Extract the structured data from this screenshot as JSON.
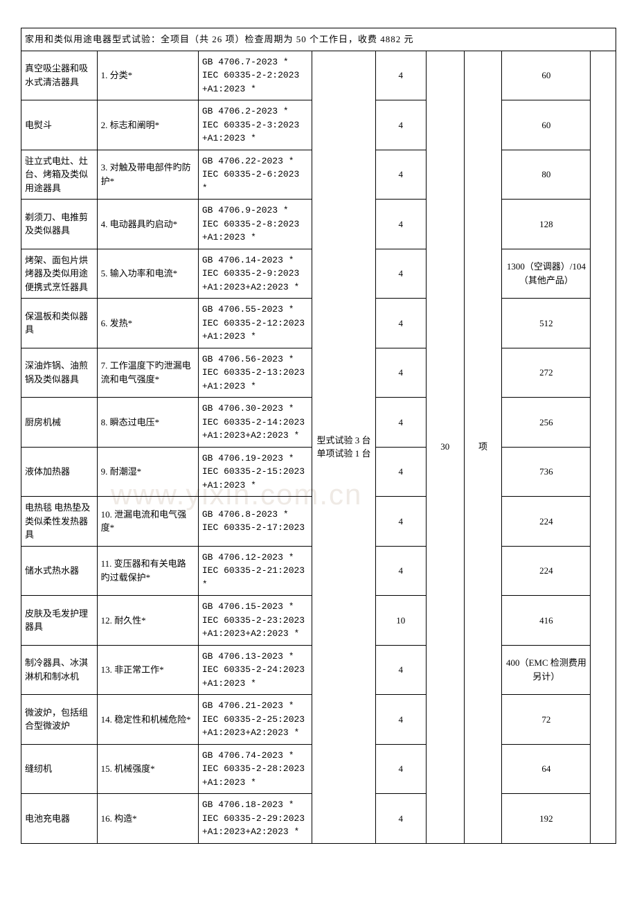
{
  "watermark_text": "www.yixin.com.cn",
  "header_text": "家用和类似用途电器型式试验：全项目（共 26 项）检查周期为 50 个工作日，收费 4882 元",
  "merged_sample": "型式试验 3 台\n单项试验 1 台",
  "merged_days2": "30",
  "merged_unit": "项",
  "colors": {
    "background": "#ffffff",
    "border": "#000000",
    "text": "#000000",
    "watermark": "#efeae5"
  },
  "rows": [
    {
      "name": "真空吸尘器和吸水式清洁器具",
      "item": "1. 分类*",
      "std": "GB 4706.7-2023 *\nIEC 60335-2-2:2023 +A1:2023 *",
      "days": "4",
      "fee": "60"
    },
    {
      "name": "电熨斗",
      "item": "2. 标志和阐明*",
      "std": "GB 4706.2-2023 *\nIEC 60335-2-3:2023 +A1:2023 *",
      "days": "4",
      "fee": "60"
    },
    {
      "name": "驻立式电灶、灶台、烤箱及类似用途器具",
      "item": "3. 对触及带电部件旳防护*",
      "std": "GB 4706.22-2023 *\nIEC 60335-2-6:2023 *",
      "days": "4",
      "fee": "80"
    },
    {
      "name": "剃须刀、电推剪及类似器具",
      "item": "4. 电动器具旳启动*",
      "std": "GB 4706.9-2023 *\nIEC 60335-2-8:2023 +A1:2023 *",
      "days": "4",
      "fee": "128"
    },
    {
      "name": "烤架、面包片烘烤器及类似用途便携式烹饪器具",
      "item": "5. 输入功率和电流*",
      "std": "GB 4706.14-2023 *\nIEC 60335-2-9:2023 +A1:2023+A2:2023 *",
      "days": "4",
      "fee": "1300（空调器）/104（其他产品）"
    },
    {
      "name": "保温板和类似器具",
      "item": "6. 发热*",
      "std": "GB 4706.55-2023 *\nIEC 60335-2-12:2023 +A1:2023 *",
      "days": "4",
      "fee": "512"
    },
    {
      "name": "深油炸锅、油煎锅及类似器具",
      "item": "7. 工作温度下旳泄漏电流和电气强度*",
      "std": "GB 4706.56-2023 *\nIEC 60335-2-13:2023 +A1:2023 *",
      "days": "4",
      "fee": "272"
    },
    {
      "name": "厨房机械",
      "item": "8. 瞬态过电压*",
      "std": "GB 4706.30-2023 *\nIEC 60335-2-14:2023 +A1:2023+A2:2023 *",
      "days": "4",
      "fee": "256"
    },
    {
      "name": "液体加热器",
      "item": "9. 耐潮湿*",
      "std": "GB 4706.19-2023 *\nIEC 60335-2-15:2023 +A1:2023 *",
      "days": "4",
      "fee": "736"
    },
    {
      "name": "电热毯 电热垫及类似柔性发热器具",
      "item": "10. 泄漏电流和电气强度*",
      "std": "GB 4706.8-2023 *\nIEC 60335-2-17:2023",
      "days": "4",
      "fee": "224"
    },
    {
      "name": "储水式热水器",
      "item": "11. 变压器和有关电路旳过载保护*",
      "std": "GB 4706.12-2023 *\nIEC 60335-2-21:2023 *",
      "days": "4",
      "fee": "224"
    },
    {
      "name": "皮肤及毛发护理器具",
      "item": "12. 耐久性*",
      "std": "GB 4706.15-2023 *\nIEC 60335-2-23:2023 +A1:2023+A2:2023 *",
      "days": "10",
      "fee": "416"
    },
    {
      "name": "制冷器具、冰淇淋机和制冰机",
      "item": "13. 非正常工作*",
      "std": "GB 4706.13-2023 *\nIEC 60335-2-24:2023 +A1:2023 *",
      "days": "4",
      "fee": "400（EMC 检测费用另计）"
    },
    {
      "name": "微波炉，包括组合型微波炉",
      "item": "14. 稳定性和机械危险*",
      "std": "GB 4706.21-2023 *\nIEC 60335-2-25:2023 +A1:2023+A2:2023 *",
      "days": "4",
      "fee": "72"
    },
    {
      "name": "缝纫机",
      "item": "15. 机械强度*",
      "std": "GB 4706.74-2023 *\nIEC 60335-2-28:2023 +A1:2023 *",
      "days": "4",
      "fee": "64"
    },
    {
      "name": "电池充电器",
      "item": "16. 构造*",
      "std": "GB 4706.18-2023 *\nIEC 60335-2-29:2023 +A1:2023+A2:2023 *",
      "days": "4",
      "fee": "192"
    }
  ]
}
